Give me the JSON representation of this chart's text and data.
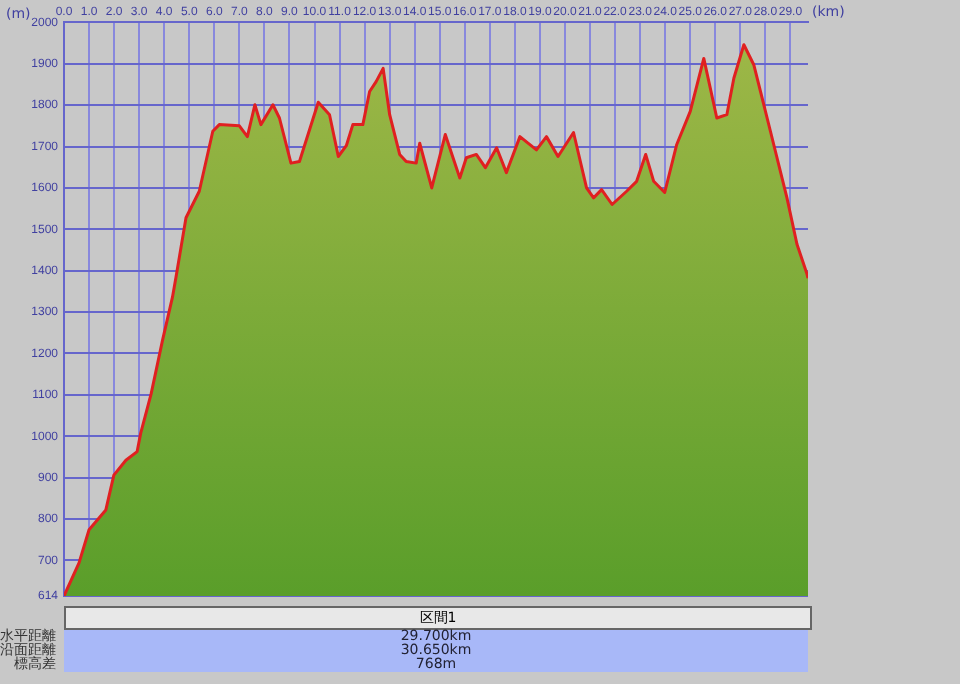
{
  "chart_data": {
    "type": "area",
    "xlabel": "(km)",
    "ylabel": "(m)",
    "x": [
      0,
      0.6,
      1.0,
      1.67,
      1.99,
      2.47,
      2.92,
      3.06,
      3.48,
      3.93,
      4.33,
      4.47,
      4.87,
      5.4,
      5.94,
      6.2,
      7.0,
      7.32,
      7.62,
      7.86,
      8.34,
      8.6,
      9.06,
      9.4,
      10.15,
      10.6,
      10.95,
      11.27,
      11.53,
      11.93,
      12.2,
      12.46,
      12.74,
      13.0,
      13.4,
      13.66,
      14.06,
      14.2,
      14.68,
      15.22,
      15.8,
      16.06,
      16.46,
      16.82,
      17.27,
      17.66,
      18.2,
      18.86,
      19.26,
      19.72,
      20.34,
      20.86,
      21.14,
      21.46,
      21.88,
      22.46,
      22.86,
      23.22,
      23.54,
      23.98,
      24.46,
      25.0,
      25.54,
      26.06,
      26.46,
      26.74,
      27.14,
      27.54,
      28.2,
      28.86,
      29.26,
      29.66,
      29.7
    ],
    "series": [
      {
        "color": "#e02020",
        "values": [
          614,
          694,
          774,
          822,
          906,
          942,
          963,
          1007,
          1103,
          1231,
          1336,
          1384,
          1528,
          1592,
          1737,
          1753,
          1750,
          1724,
          1801,
          1753,
          1801,
          1769,
          1660,
          1664,
          1807,
          1777,
          1676,
          1702,
          1753,
          1753,
          1833,
          1857,
          1889,
          1777,
          1681,
          1664,
          1660,
          1708,
          1600,
          1729,
          1624,
          1673,
          1681,
          1649,
          1697,
          1637,
          1724,
          1692,
          1724,
          1676,
          1734,
          1600,
          1576,
          1596,
          1560,
          1592,
          1616,
          1681,
          1616,
          1589,
          1705,
          1785,
          1913,
          1769,
          1777,
          1865,
          1946,
          1897,
          1737,
          1576,
          1464,
          1392,
          1382
        ]
      }
    ],
    "xlim": [
      0,
      29.7
    ],
    "xticks": [
      {
        "value": 0,
        "label": "0.0"
      },
      {
        "value": 1,
        "label": "1.0"
      },
      {
        "value": 2,
        "label": "2.0"
      },
      {
        "value": 3,
        "label": "3.0"
      },
      {
        "value": 4,
        "label": "4.0"
      },
      {
        "value": 5,
        "label": "5.0"
      },
      {
        "value": 6,
        "label": "6.0"
      },
      {
        "value": 7,
        "label": "7.0"
      },
      {
        "value": 8,
        "label": "8.0"
      },
      {
        "value": 9,
        "label": "9.0"
      },
      {
        "value": 10,
        "label": "10.0"
      },
      {
        "value": 11,
        "label": "11.0"
      },
      {
        "value": 12,
        "label": "12.0"
      },
      {
        "value": 13,
        "label": "13.0"
      },
      {
        "value": 14,
        "label": "14.0"
      },
      {
        "value": 15,
        "label": "15.0"
      },
      {
        "value": 16,
        "label": "16.0"
      },
      {
        "value": 17,
        "label": "17.0"
      },
      {
        "value": 18,
        "label": "18.0"
      },
      {
        "value": 19,
        "label": "19.0"
      },
      {
        "value": 20,
        "label": "20.0"
      },
      {
        "value": 21,
        "label": "21.0"
      },
      {
        "value": 22,
        "label": "22.0"
      },
      {
        "value": 23,
        "label": "23.0"
      },
      {
        "value": 24,
        "label": "24.0"
      },
      {
        "value": 25,
        "label": "25.0"
      },
      {
        "value": 26,
        "label": "26.0"
      },
      {
        "value": 27,
        "label": "27.0"
      },
      {
        "value": 28,
        "label": "28.0"
      },
      {
        "value": 29,
        "label": "29.0"
      }
    ],
    "ylim": [
      614,
      2000
    ],
    "yticks": [
      614,
      700,
      800,
      900,
      1000,
      1100,
      1200,
      1300,
      1400,
      1500,
      1600,
      1700,
      1800,
      1900,
      2000
    ],
    "grid": true,
    "annotations": [
      "区間1",
      "水平距離",
      "29.700km",
      "沿面距離",
      "30.650km",
      "標高差",
      "768m"
    ]
  }
}
